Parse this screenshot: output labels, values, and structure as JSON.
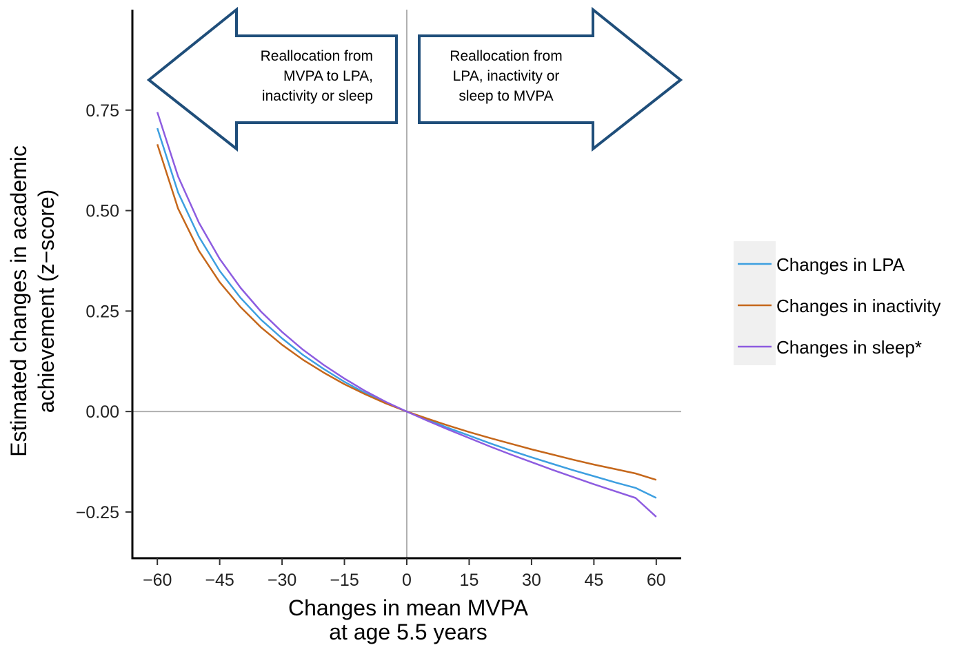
{
  "chart_data": {
    "type": "line",
    "xlabel": [
      "Changes in mean MVPA",
      "at age 5.5 years"
    ],
    "ylabel": [
      "Estimated changes in academic",
      "achievement (z−score)"
    ],
    "xlim": [
      -66,
      66
    ],
    "ylim": [
      -0.365,
      1.0
    ],
    "x_ticks": [
      -60,
      -45,
      -30,
      -15,
      0,
      15,
      30,
      45,
      60
    ],
    "x_tick_labels": [
      "−60",
      "−45",
      "−30",
      "−15",
      "0",
      "15",
      "30",
      "45",
      "60"
    ],
    "y_ticks": [
      -0.25,
      0,
      0.25,
      0.5,
      0.75
    ],
    "y_tick_labels": [
      "−0.25",
      "0.00",
      "0.25",
      "0.50",
      "0.75"
    ],
    "reference_lines": {
      "x": 0,
      "y": 0,
      "color": "#b0b0b0"
    },
    "x": [
      -60,
      -55,
      -50,
      -45,
      -40,
      -35,
      -30,
      -25,
      -20,
      -15,
      -10,
      -5,
      0,
      5,
      10,
      15,
      20,
      25,
      30,
      35,
      40,
      45,
      50,
      55,
      60
    ],
    "series": [
      {
        "name": "Changes in LPA",
        "color": "#3d9fe0",
        "values": [
          0.705,
          0.545,
          0.435,
          0.35,
          0.283,
          0.228,
          0.182,
          0.141,
          0.106,
          0.074,
          0.046,
          0.022,
          0,
          -0.021,
          -0.041,
          -0.06,
          -0.079,
          -0.097,
          -0.114,
          -0.13,
          -0.146,
          -0.161,
          -0.176,
          -0.19,
          -0.215
        ]
      },
      {
        "name": "Changes in inactivity",
        "color": "#c5671b",
        "values": [
          0.665,
          0.505,
          0.4,
          0.322,
          0.26,
          0.209,
          0.166,
          0.129,
          0.097,
          0.068,
          0.043,
          0.02,
          0,
          -0.018,
          -0.035,
          -0.051,
          -0.066,
          -0.08,
          -0.094,
          -0.107,
          -0.12,
          -0.132,
          -0.143,
          -0.154,
          -0.17
        ]
      },
      {
        "name": "Changes in sleep*",
        "color": "#8d5ce0",
        "values": [
          0.745,
          0.585,
          0.47,
          0.38,
          0.308,
          0.248,
          0.198,
          0.154,
          0.116,
          0.082,
          0.051,
          0.024,
          0,
          -0.023,
          -0.045,
          -0.066,
          -0.087,
          -0.107,
          -0.126,
          -0.145,
          -0.163,
          -0.181,
          -0.198,
          -0.215,
          -0.262
        ]
      }
    ],
    "annotations": [
      {
        "text": [
          "Reallocation from",
          "MVPA to LPA,",
          "inactivity or sleep"
        ],
        "direction": "left"
      },
      {
        "text": [
          "Reallocation from",
          "LPA, inactivity or",
          "sleep to MVPA"
        ],
        "direction": "right"
      }
    ],
    "legend": {
      "placement": "right",
      "entries": [
        "Changes in LPA",
        "Changes in inactivity",
        "Changes in sleep*"
      ]
    },
    "colors": {
      "arrow_stroke": "#1f4e7a",
      "legend_bg": "#f0f0f0",
      "axis": "#000000"
    }
  }
}
